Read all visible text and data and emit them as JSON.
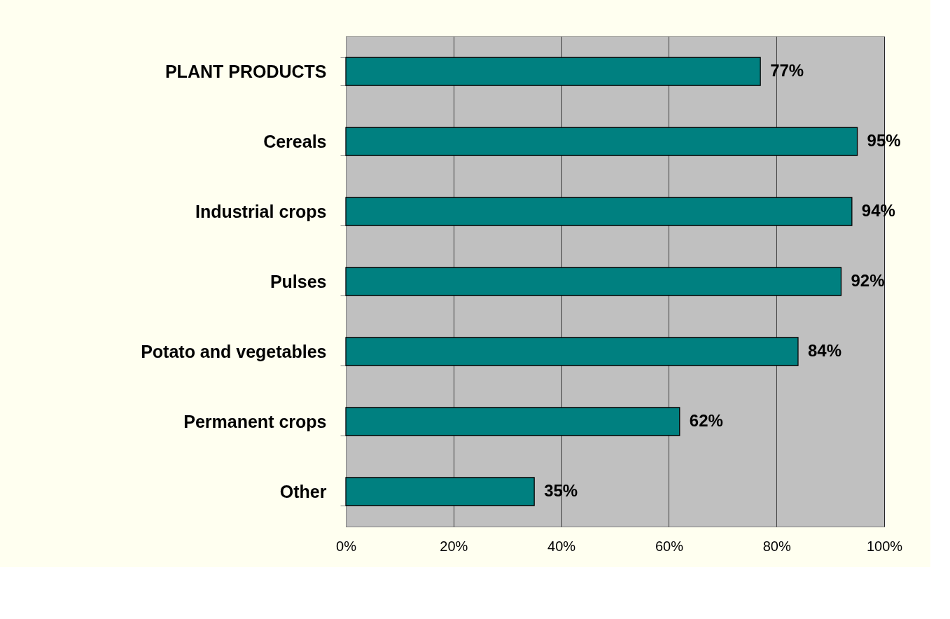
{
  "chart_data": {
    "type": "bar",
    "orientation": "horizontal",
    "categories": [
      "PLANT PRODUCTS",
      "Cereals",
      "Industrial crops",
      "Pulses",
      "Potato and vegetables",
      "Permanent crops",
      "Other"
    ],
    "values": [
      77,
      95,
      94,
      92,
      84,
      62,
      35
    ],
    "value_labels": [
      "77%",
      "95%",
      "94%",
      "92%",
      "84%",
      "62%",
      "35%"
    ],
    "color": "#008080",
    "xlim": [
      0,
      100
    ],
    "xticks": [
      {
        "value": 0,
        "label": "0%"
      },
      {
        "value": 20,
        "label": "20%"
      },
      {
        "value": 40,
        "label": "40%"
      },
      {
        "value": 60,
        "label": "60%"
      },
      {
        "value": 80,
        "label": "80%"
      },
      {
        "value": 100,
        "label": "100%"
      }
    ],
    "grid": "x"
  }
}
